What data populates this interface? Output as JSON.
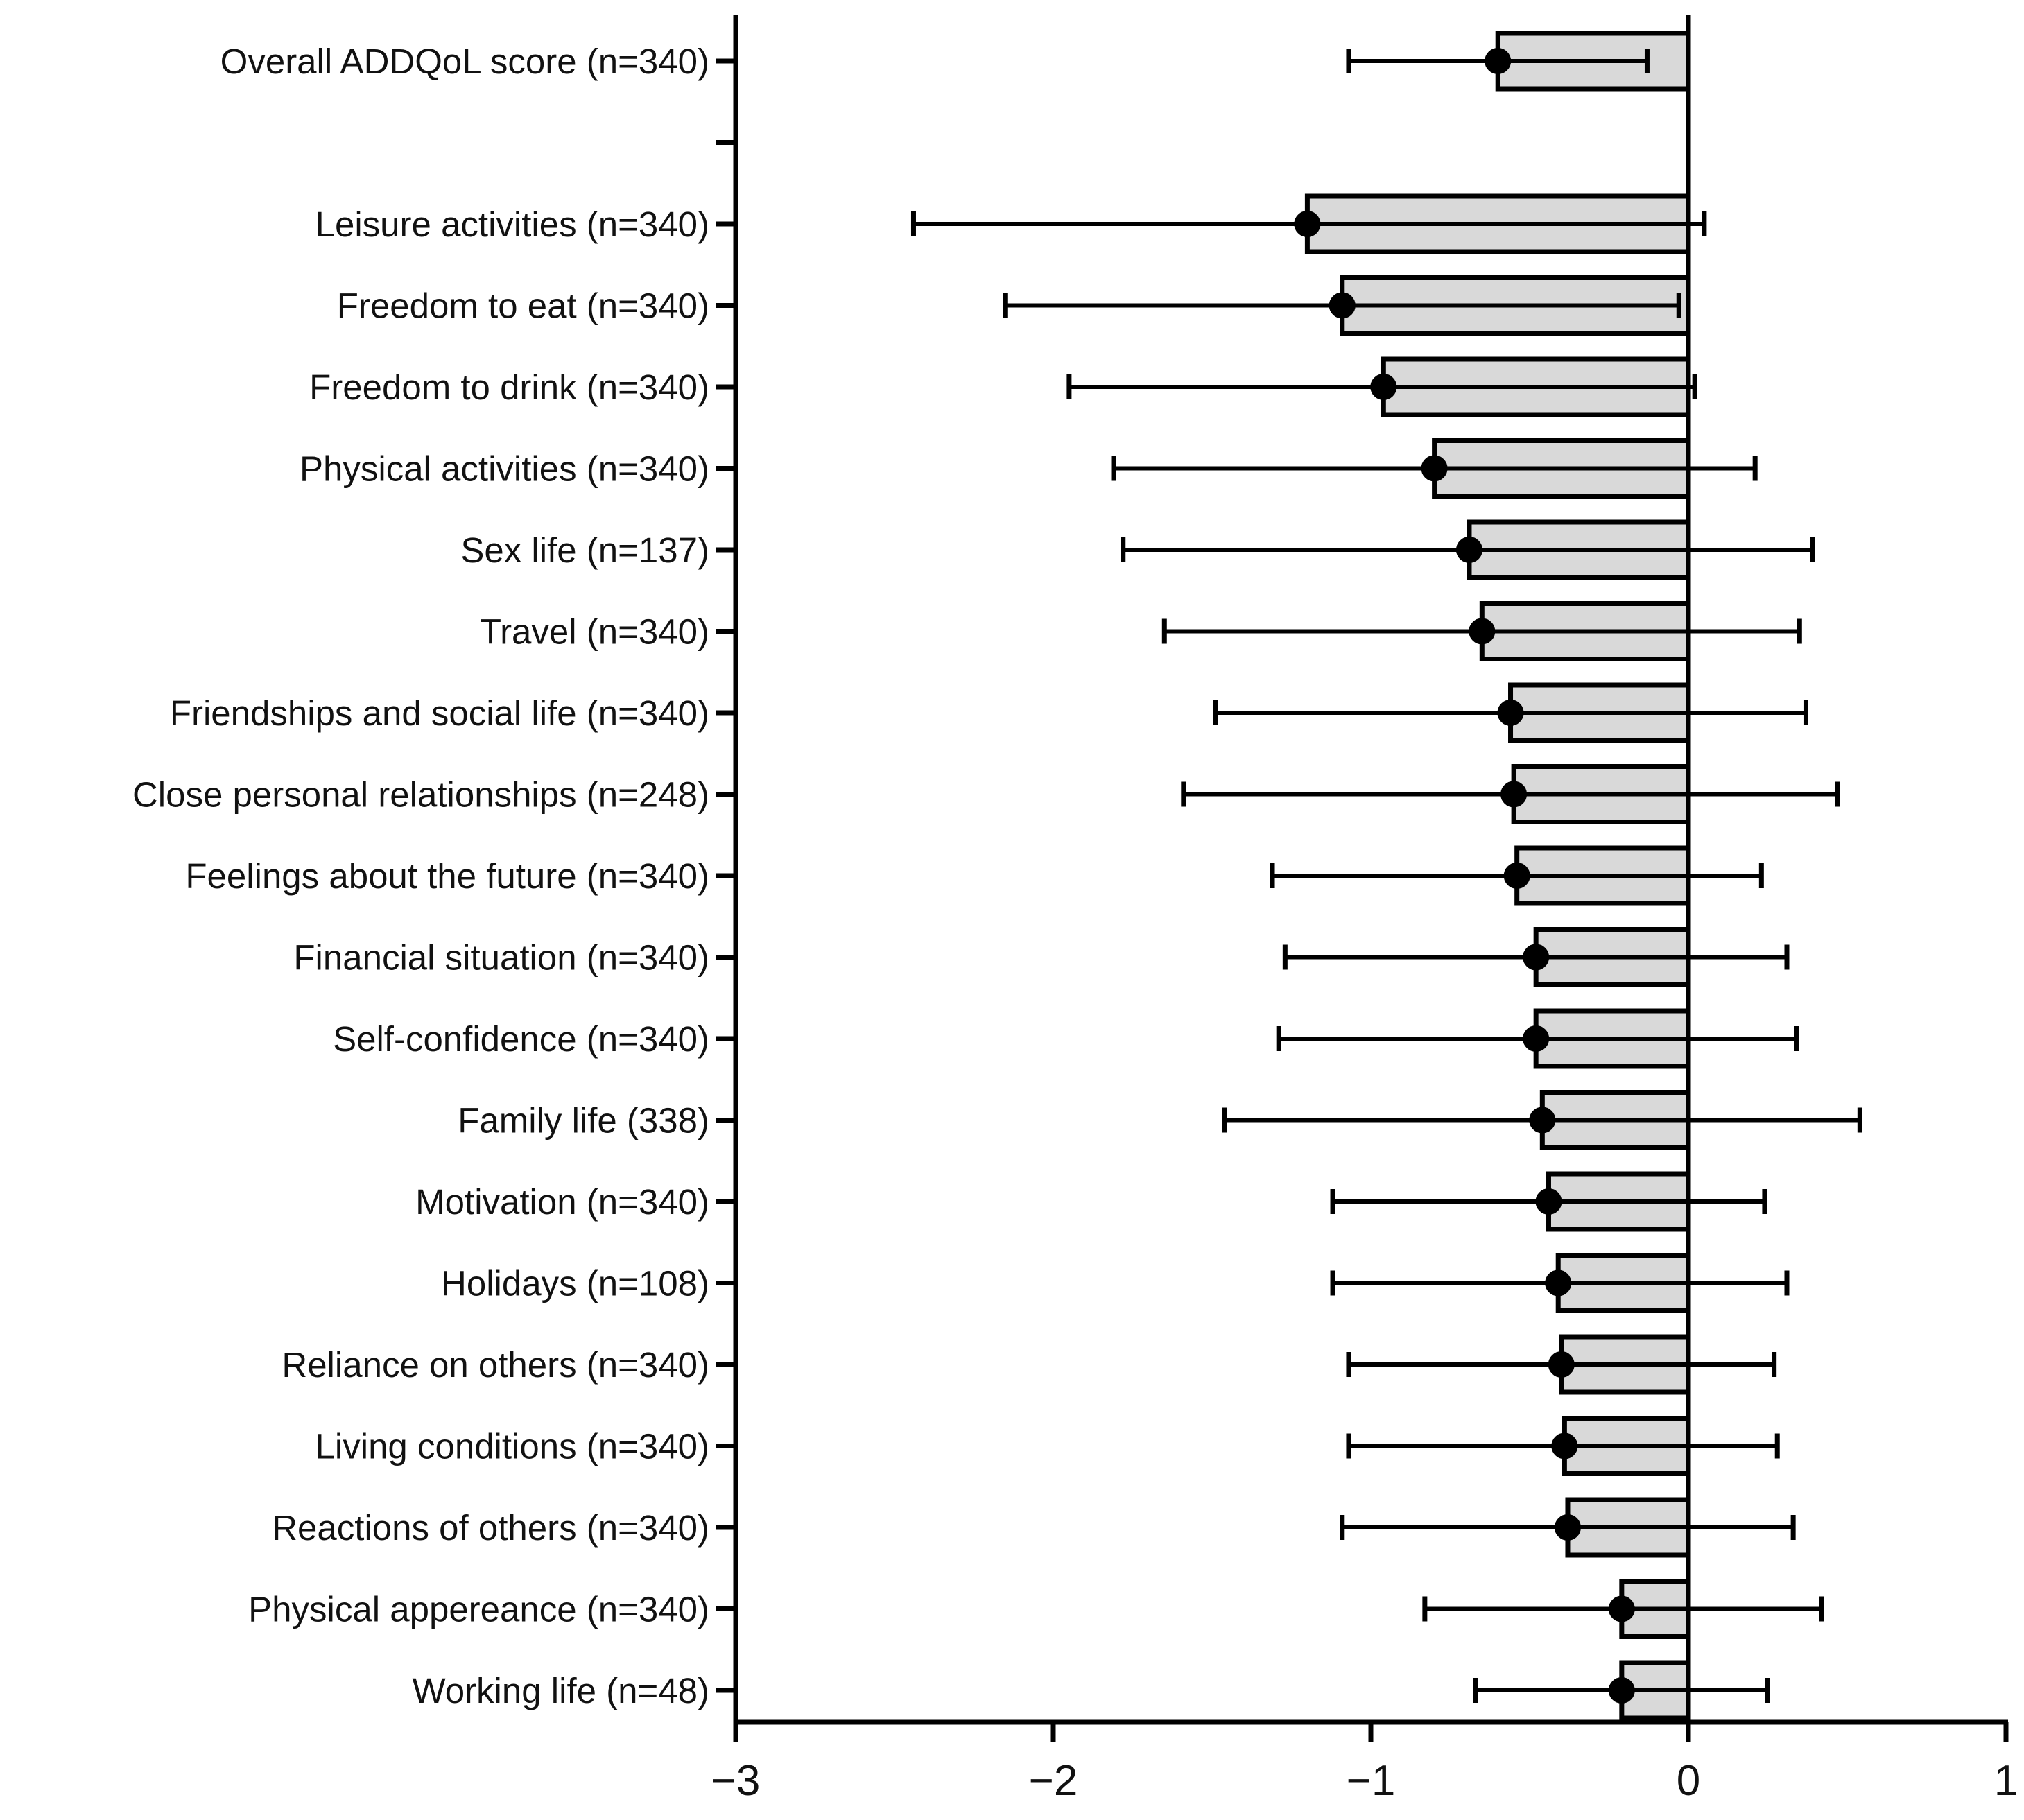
{
  "chart_data": {
    "type": "bar",
    "orientation": "horizontal",
    "title": "",
    "xlabel": "",
    "ylabel": "",
    "xlim": [
      -3,
      1
    ],
    "x_ticks": [
      -3,
      -2,
      -1,
      0,
      1
    ],
    "x_tick_labels": [
      "−3",
      "−2",
      "−1",
      "0",
      "1"
    ],
    "grid": false,
    "colors": {
      "bar_fill": "#d9d9d9",
      "stroke": "#000000"
    },
    "categories": [
      "Overall ADDQoL score (n=340)",
      "",
      "Leisure activities (n=340)",
      "Freedom to eat (n=340)",
      "Freedom to drink (n=340)",
      "Physical activities (n=340)",
      "Sex life (n=137)",
      "Travel (n=340)",
      "Friendships and social life (n=340)",
      "Close personal relationships (n=248)",
      "Feelings about the future (n=340)",
      "Financial situation (n=340)",
      "Self-confidence (n=340)",
      "Family life (338)",
      "Motivation (n=340)",
      "Holidays (n=108)",
      "Reliance on others (n=340)",
      "Living conditions (n=340)",
      "Reactions of others (n=340)",
      "Physical appereance (n=340)",
      "Working life (n=48)"
    ],
    "values": [
      -0.6,
      null,
      -1.2,
      -1.09,
      -0.96,
      -0.8,
      -0.69,
      -0.65,
      -0.56,
      -0.55,
      -0.54,
      -0.48,
      -0.48,
      -0.46,
      -0.44,
      -0.41,
      -0.4,
      -0.39,
      -0.38,
      -0.21,
      -0.21
    ],
    "error_low": [
      -1.07,
      null,
      -2.44,
      -2.15,
      -1.95,
      -1.81,
      -1.78,
      -1.65,
      -1.49,
      -1.59,
      -1.31,
      -1.27,
      -1.29,
      -1.46,
      -1.12,
      -1.12,
      -1.07,
      -1.07,
      -1.09,
      -0.83,
      -0.67
    ],
    "error_high": [
      -0.13,
      null,
      0.05,
      -0.03,
      0.02,
      0.21,
      0.39,
      0.35,
      0.37,
      0.47,
      0.23,
      0.31,
      0.34,
      0.54,
      0.24,
      0.31,
      0.27,
      0.28,
      0.33,
      0.42,
      0.25
    ]
  }
}
